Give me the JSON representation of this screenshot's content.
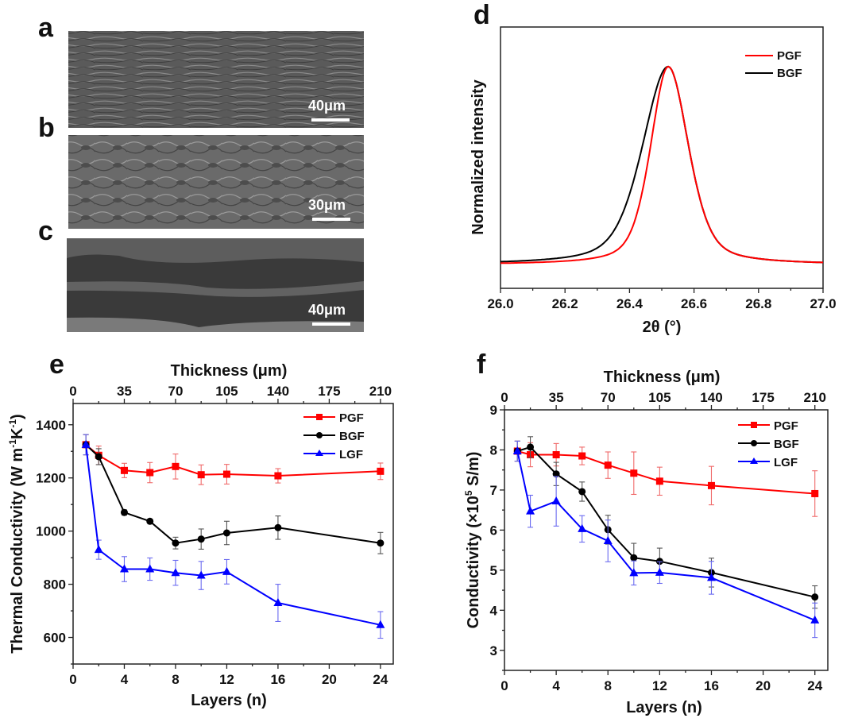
{
  "figure": {
    "panels": {
      "a": {
        "letter": "a",
        "scale_bar": "40μm",
        "description": "SEM cross-section, densely stacked wavy layers"
      },
      "b": {
        "letter": "b",
        "scale_bar": "30μm",
        "description": "SEM cross-section, disordered wrinkled layers"
      },
      "c": {
        "letter": "c",
        "scale_bar": "40μm",
        "description": "SEM cross-section, thick layers with gaps"
      },
      "d": {
        "letter": "d"
      },
      "e": {
        "letter": "e"
      },
      "f": {
        "letter": "f"
      }
    }
  },
  "chart_data": [
    {
      "id": "d",
      "type": "line",
      "title": "",
      "xlabel": "2θ (°)",
      "ylabel": "Normalized intensity",
      "xlim": [
        26.0,
        27.0
      ],
      "ylim": [
        -0.12,
        1.2
      ],
      "xticks": [
        "26.0",
        "26.2",
        "26.4",
        "26.6",
        "26.8",
        "27.0"
      ],
      "xtick_values": [
        26.0,
        26.2,
        26.4,
        26.6,
        26.8,
        27.0
      ],
      "yticks_shown": false,
      "legend": {
        "position": "top-right",
        "entries": [
          "PGF",
          "BGF"
        ]
      },
      "series": [
        {
          "name": "PGF",
          "color": "#ff0000",
          "peak_center": 26.52,
          "peak_height": 1.0,
          "baseline": 0.0,
          "fwhm_left": 0.13,
          "fwhm_right": 0.15
        },
        {
          "name": "BGF",
          "color": "#000000",
          "peak_center": 26.52,
          "peak_height": 1.0,
          "baseline": 0.0,
          "fwhm_left": 0.19,
          "fwhm_right": 0.15
        }
      ]
    },
    {
      "id": "e",
      "type": "line",
      "title": "",
      "xlabel": "Layers (n)",
      "x2label": "Thickness (μm)",
      "ylabel": "Thermal Conductivity (W m⁻¹K⁻¹)",
      "ylabel_parts": [
        "Thermal Conductivity (W m",
        "-1",
        "K",
        "-1",
        ")"
      ],
      "xlim": [
        0,
        25
      ],
      "ylim": [
        500,
        1480
      ],
      "xticks": [
        "0",
        "4",
        "8",
        "12",
        "16",
        "20",
        "24"
      ],
      "xtick_values": [
        0,
        4,
        8,
        12,
        16,
        20,
        24
      ],
      "x2ticks": [
        "0",
        "35",
        "70",
        "105",
        "140",
        "175",
        "210"
      ],
      "yticks": [
        "600",
        "800",
        "1000",
        "1200",
        "1400"
      ],
      "ytick_values": [
        600,
        800,
        1000,
        1200,
        1400
      ],
      "legend": {
        "position": "top-right",
        "entries": [
          "PGF",
          "BGF",
          "LGF"
        ]
      },
      "x": [
        1,
        2,
        4,
        6,
        8,
        10,
        12,
        16,
        24
      ],
      "series": [
        {
          "name": "PGF",
          "color": "#ff0000",
          "marker": "square",
          "values": [
            1325,
            1285,
            1228,
            1220,
            1243,
            1212,
            1214,
            1208,
            1225
          ],
          "errors": [
            38,
            35,
            27,
            38,
            47,
            37,
            37,
            27,
            31
          ]
        },
        {
          "name": "BGF",
          "color": "#000000",
          "marker": "circle",
          "values": [
            1325,
            1280,
            1070,
            1037,
            955,
            970,
            993,
            1013,
            955
          ],
          "errors": [
            38,
            30,
            10,
            8,
            22,
            38,
            44,
            44,
            40
          ]
        },
        {
          "name": "LGF",
          "color": "#0000ff",
          "marker": "triangle",
          "values": [
            1325,
            930,
            857,
            857,
            843,
            833,
            847,
            730,
            647
          ],
          "errors": [
            38,
            36,
            47,
            42,
            47,
            53,
            46,
            70,
            50
          ]
        }
      ]
    },
    {
      "id": "f",
      "type": "line",
      "title": "",
      "xlabel": "Layers (n)",
      "x2label": "Thickness (μm)",
      "ylabel": "Conductivity (×10⁵ S/m)",
      "ylabel_parts": [
        "Conductivity (×10",
        "5",
        " S/m)"
      ],
      "xlim": [
        0,
        25
      ],
      "ylim": [
        2.5,
        9
      ],
      "xticks": [
        "0",
        "4",
        "8",
        "12",
        "16",
        "20",
        "24"
      ],
      "xtick_values": [
        0,
        4,
        8,
        12,
        16,
        20,
        24
      ],
      "x2ticks": [
        "0",
        "35",
        "70",
        "105",
        "140",
        "175",
        "210"
      ],
      "yticks": [
        "3",
        "4",
        "5",
        "6",
        "7",
        "8",
        "9"
      ],
      "ytick_values": [
        3,
        4,
        5,
        6,
        7,
        8,
        9
      ],
      "legend": {
        "position": "top-right",
        "entries": [
          "PGF",
          "BGF",
          "LGF"
        ]
      },
      "x": [
        1,
        2,
        4,
        6,
        8,
        10,
        12,
        16,
        24
      ],
      "series": [
        {
          "name": "PGF",
          "color": "#ff0000",
          "marker": "square",
          "values": [
            7.97,
            7.88,
            7.88,
            7.85,
            7.62,
            7.42,
            7.22,
            7.11,
            6.91
          ],
          "errors": [
            0.25,
            0.3,
            0.28,
            0.22,
            0.33,
            0.53,
            0.35,
            0.48,
            0.57
          ]
        },
        {
          "name": "BGF",
          "color": "#000000",
          "marker": "circle",
          "values": [
            7.97,
            8.07,
            7.4,
            6.96,
            6.01,
            5.31,
            5.22,
            4.94,
            4.33
          ],
          "errors": [
            0.25,
            0.26,
            0.29,
            0.24,
            0.36,
            0.36,
            0.33,
            0.36,
            0.28
          ]
        },
        {
          "name": "LGF",
          "color": "#0000ff",
          "marker": "triangle",
          "values": [
            7.97,
            6.47,
            6.72,
            6.03,
            5.73,
            4.93,
            4.94,
            4.81,
            3.75
          ],
          "errors": [
            0.25,
            0.4,
            0.62,
            0.33,
            0.52,
            0.3,
            0.27,
            0.41,
            0.43
          ]
        }
      ]
    }
  ]
}
